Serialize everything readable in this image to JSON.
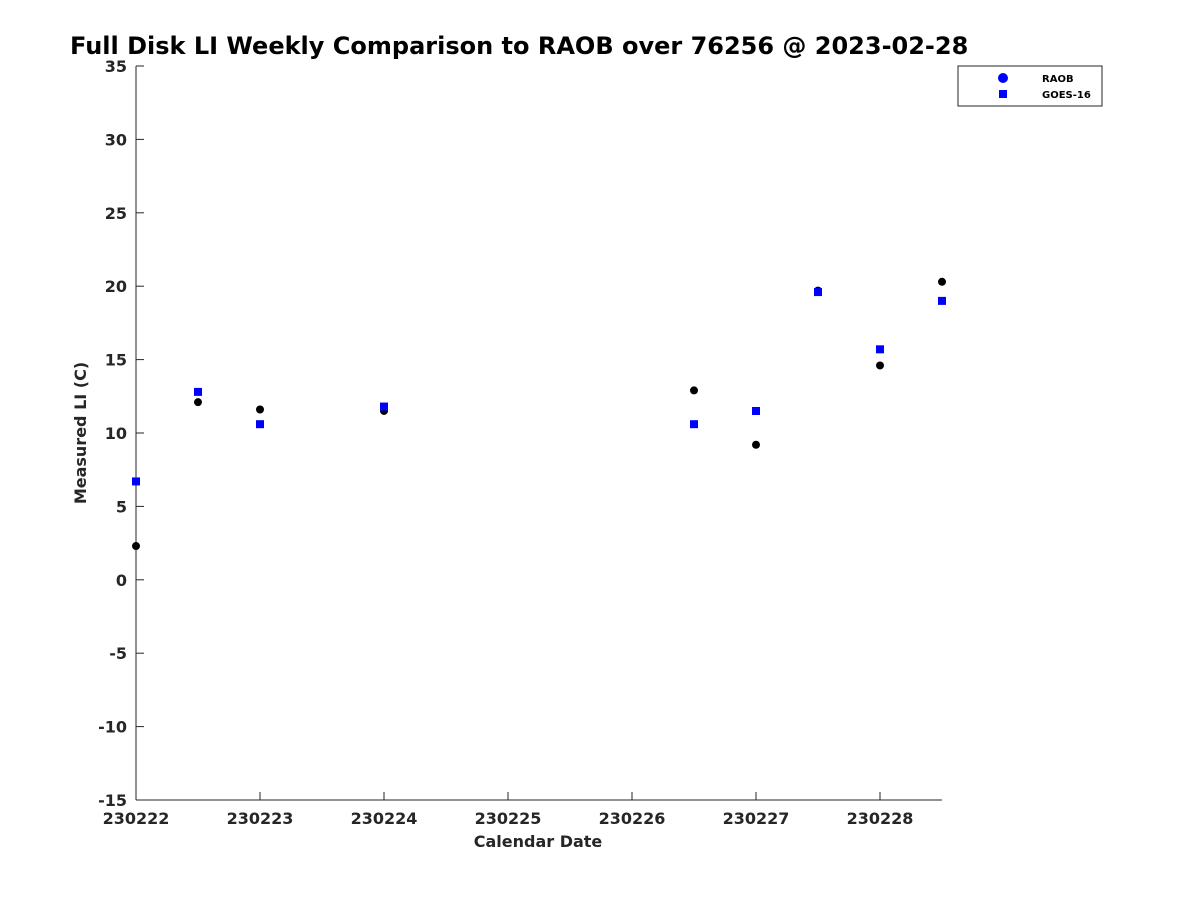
{
  "chart_data": {
    "type": "scatter",
    "title": "Full Disk LI Weekly Comparison to RAOB over 76256 @ 2023-02-28",
    "xlabel": "Calendar Date",
    "ylabel": "Measured LI (C)",
    "x_tick_labels": [
      "230222",
      "230223",
      "230224",
      "230225",
      "230226",
      "230227",
      "230228"
    ],
    "xlim": [
      0,
      6.5
    ],
    "ylim": [
      -15,
      35
    ],
    "y_ticks": [
      -15,
      -10,
      -5,
      0,
      5,
      10,
      15,
      20,
      25,
      30,
      35
    ],
    "grid": false,
    "legend_position": "top-right",
    "series": [
      {
        "name": "RAOB",
        "marker": "circle",
        "color": "#000000",
        "legend_color": "#0000ff",
        "points": [
          {
            "x": 0.0,
            "y": 2.3
          },
          {
            "x": 0.5,
            "y": 12.1
          },
          {
            "x": 1.0,
            "y": 11.6
          },
          {
            "x": 2.0,
            "y": 11.5
          },
          {
            "x": 4.5,
            "y": 12.9
          },
          {
            "x": 5.0,
            "y": 9.2
          },
          {
            "x": 5.5,
            "y": 19.7
          },
          {
            "x": 6.0,
            "y": 14.6
          },
          {
            "x": 6.5,
            "y": 20.3
          }
        ]
      },
      {
        "name": "GOES-16",
        "marker": "square",
        "color": "#0000ff",
        "legend_color": "#0000ff",
        "points": [
          {
            "x": 0.0,
            "y": 6.7
          },
          {
            "x": 0.5,
            "y": 12.8
          },
          {
            "x": 1.0,
            "y": 10.6
          },
          {
            "x": 2.0,
            "y": 11.8
          },
          {
            "x": 4.5,
            "y": 10.6
          },
          {
            "x": 5.0,
            "y": 11.5
          },
          {
            "x": 5.5,
            "y": 19.6
          },
          {
            "x": 6.0,
            "y": 15.7
          },
          {
            "x": 6.5,
            "y": 19.0
          }
        ]
      }
    ]
  }
}
